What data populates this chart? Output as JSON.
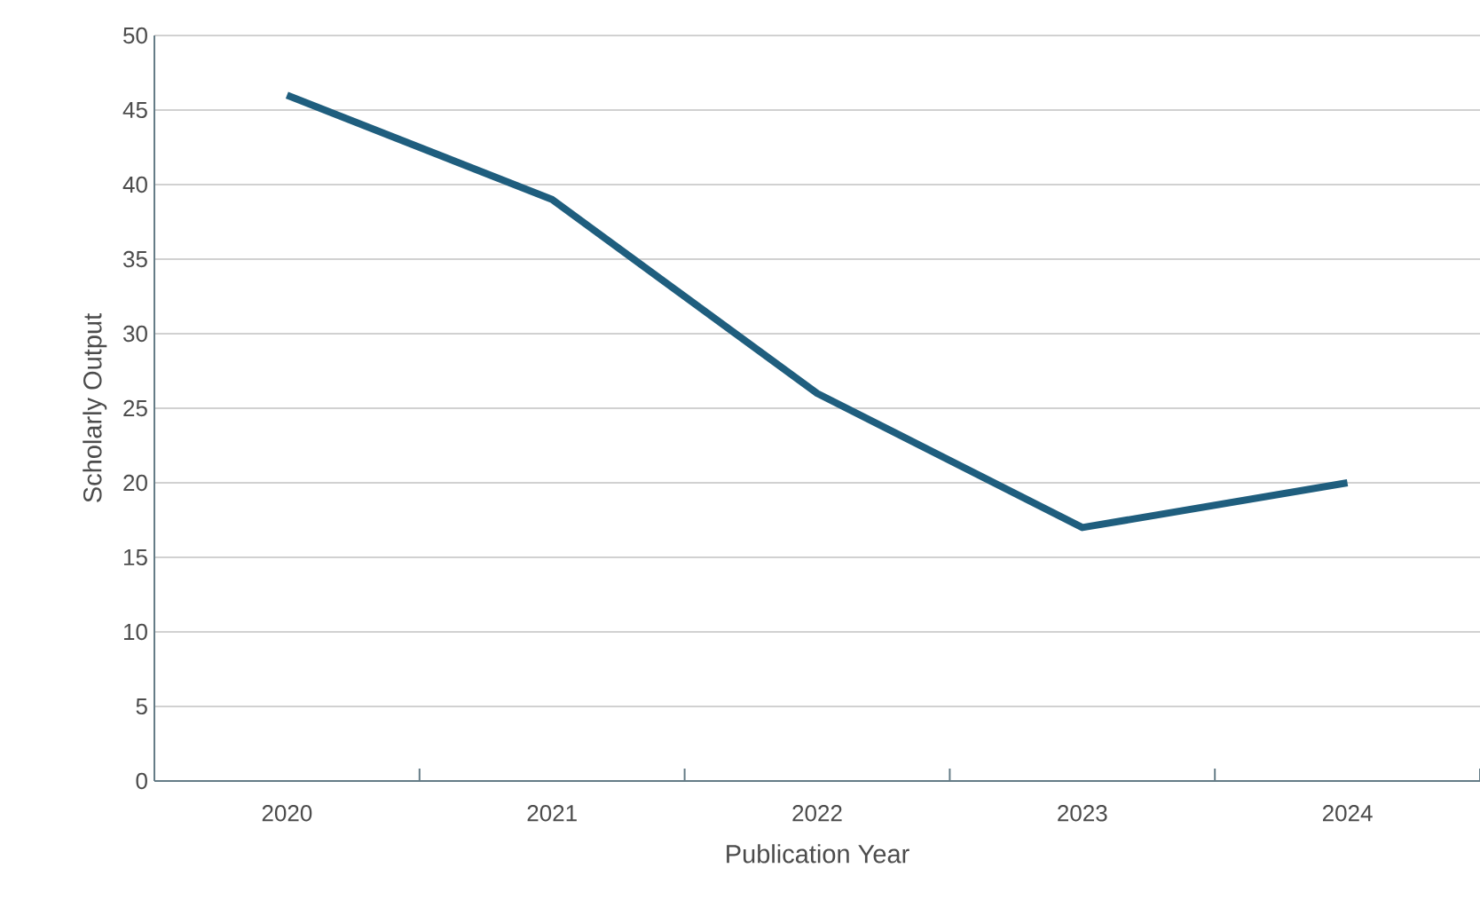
{
  "chart_data": {
    "type": "line",
    "xlabel": "Publication Year",
    "ylabel": "Scholarly Output",
    "categories": [
      "2020",
      "2021",
      "2022",
      "2023",
      "2024"
    ],
    "series": [
      {
        "color": "#1f5e7e",
        "values": [
          46,
          39,
          26,
          17,
          20
        ]
      }
    ],
    "ylim": [
      0,
      50
    ],
    "yticks": [
      0,
      5,
      10,
      15,
      20,
      25,
      30,
      35,
      40,
      45,
      50
    ],
    "grid": "y",
    "legend": false,
    "marker": "none",
    "line_style": "solid"
  }
}
